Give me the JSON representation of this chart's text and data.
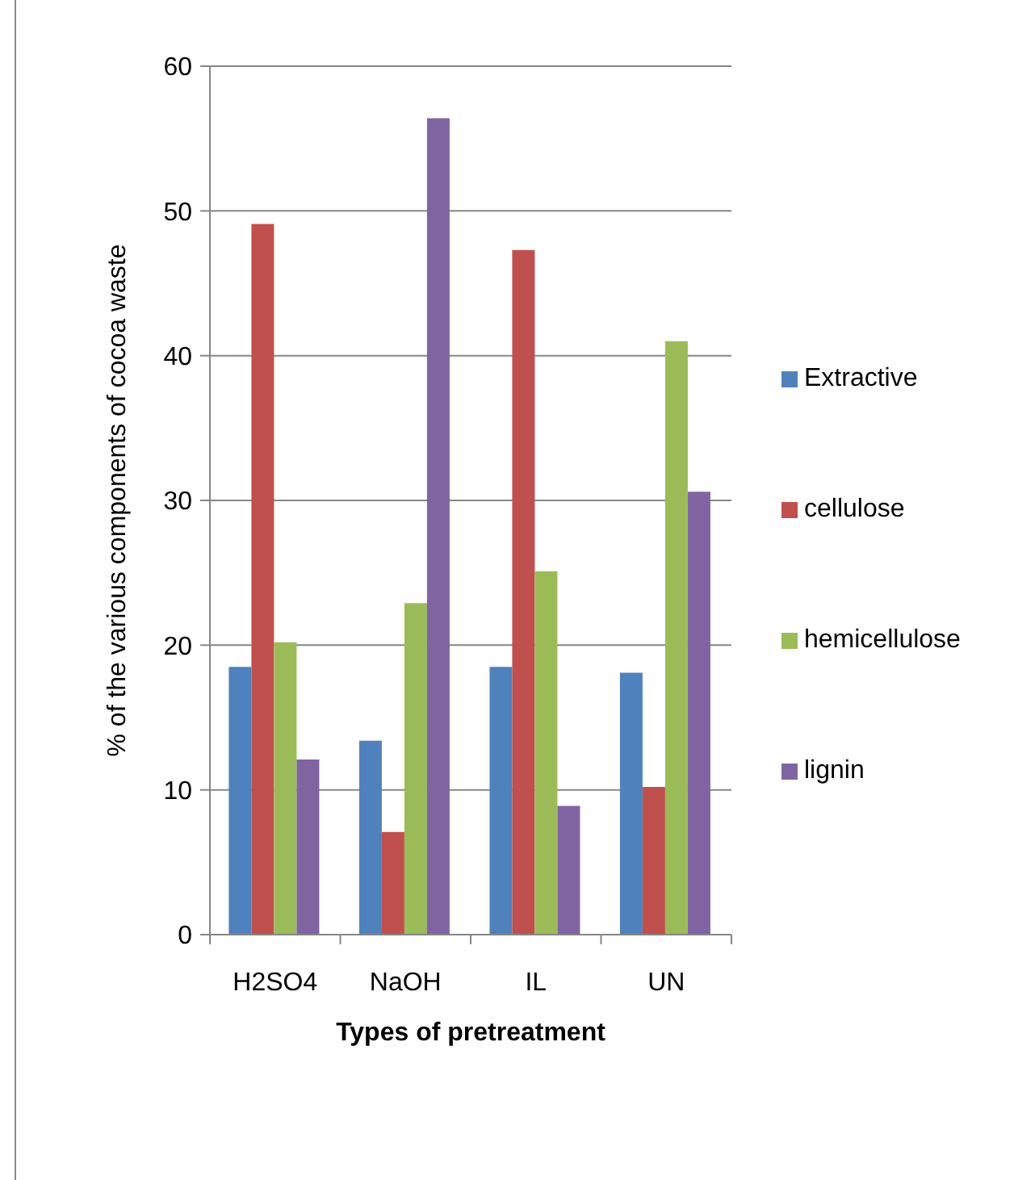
{
  "chart_data": {
    "type": "bar",
    "xlabel": "Types of pretreatment",
    "ylabel": "% of the various components of cocoa waste",
    "categories": [
      "H2SO4",
      "NaOH",
      "IL",
      "UN"
    ],
    "series": [
      {
        "name": "Extractive",
        "color": "#4f81bd",
        "values": [
          18.5,
          13.4,
          18.5,
          18.1
        ]
      },
      {
        "name": "cellulose",
        "color": "#c0504d",
        "values": [
          49.1,
          7.1,
          47.3,
          10.2
        ]
      },
      {
        "name": "hemicellulose",
        "color": "#9bbb59",
        "values": [
          20.2,
          22.9,
          25.1,
          41.0
        ]
      },
      {
        "name": "lignin",
        "color": "#8064a2",
        "values": [
          12.1,
          56.4,
          8.9,
          30.6
        ]
      }
    ],
    "ylim": [
      0,
      60
    ],
    "yticks": [
      0,
      10,
      20,
      30,
      40,
      50,
      60
    ],
    "grid": "y",
    "legend": "right"
  }
}
